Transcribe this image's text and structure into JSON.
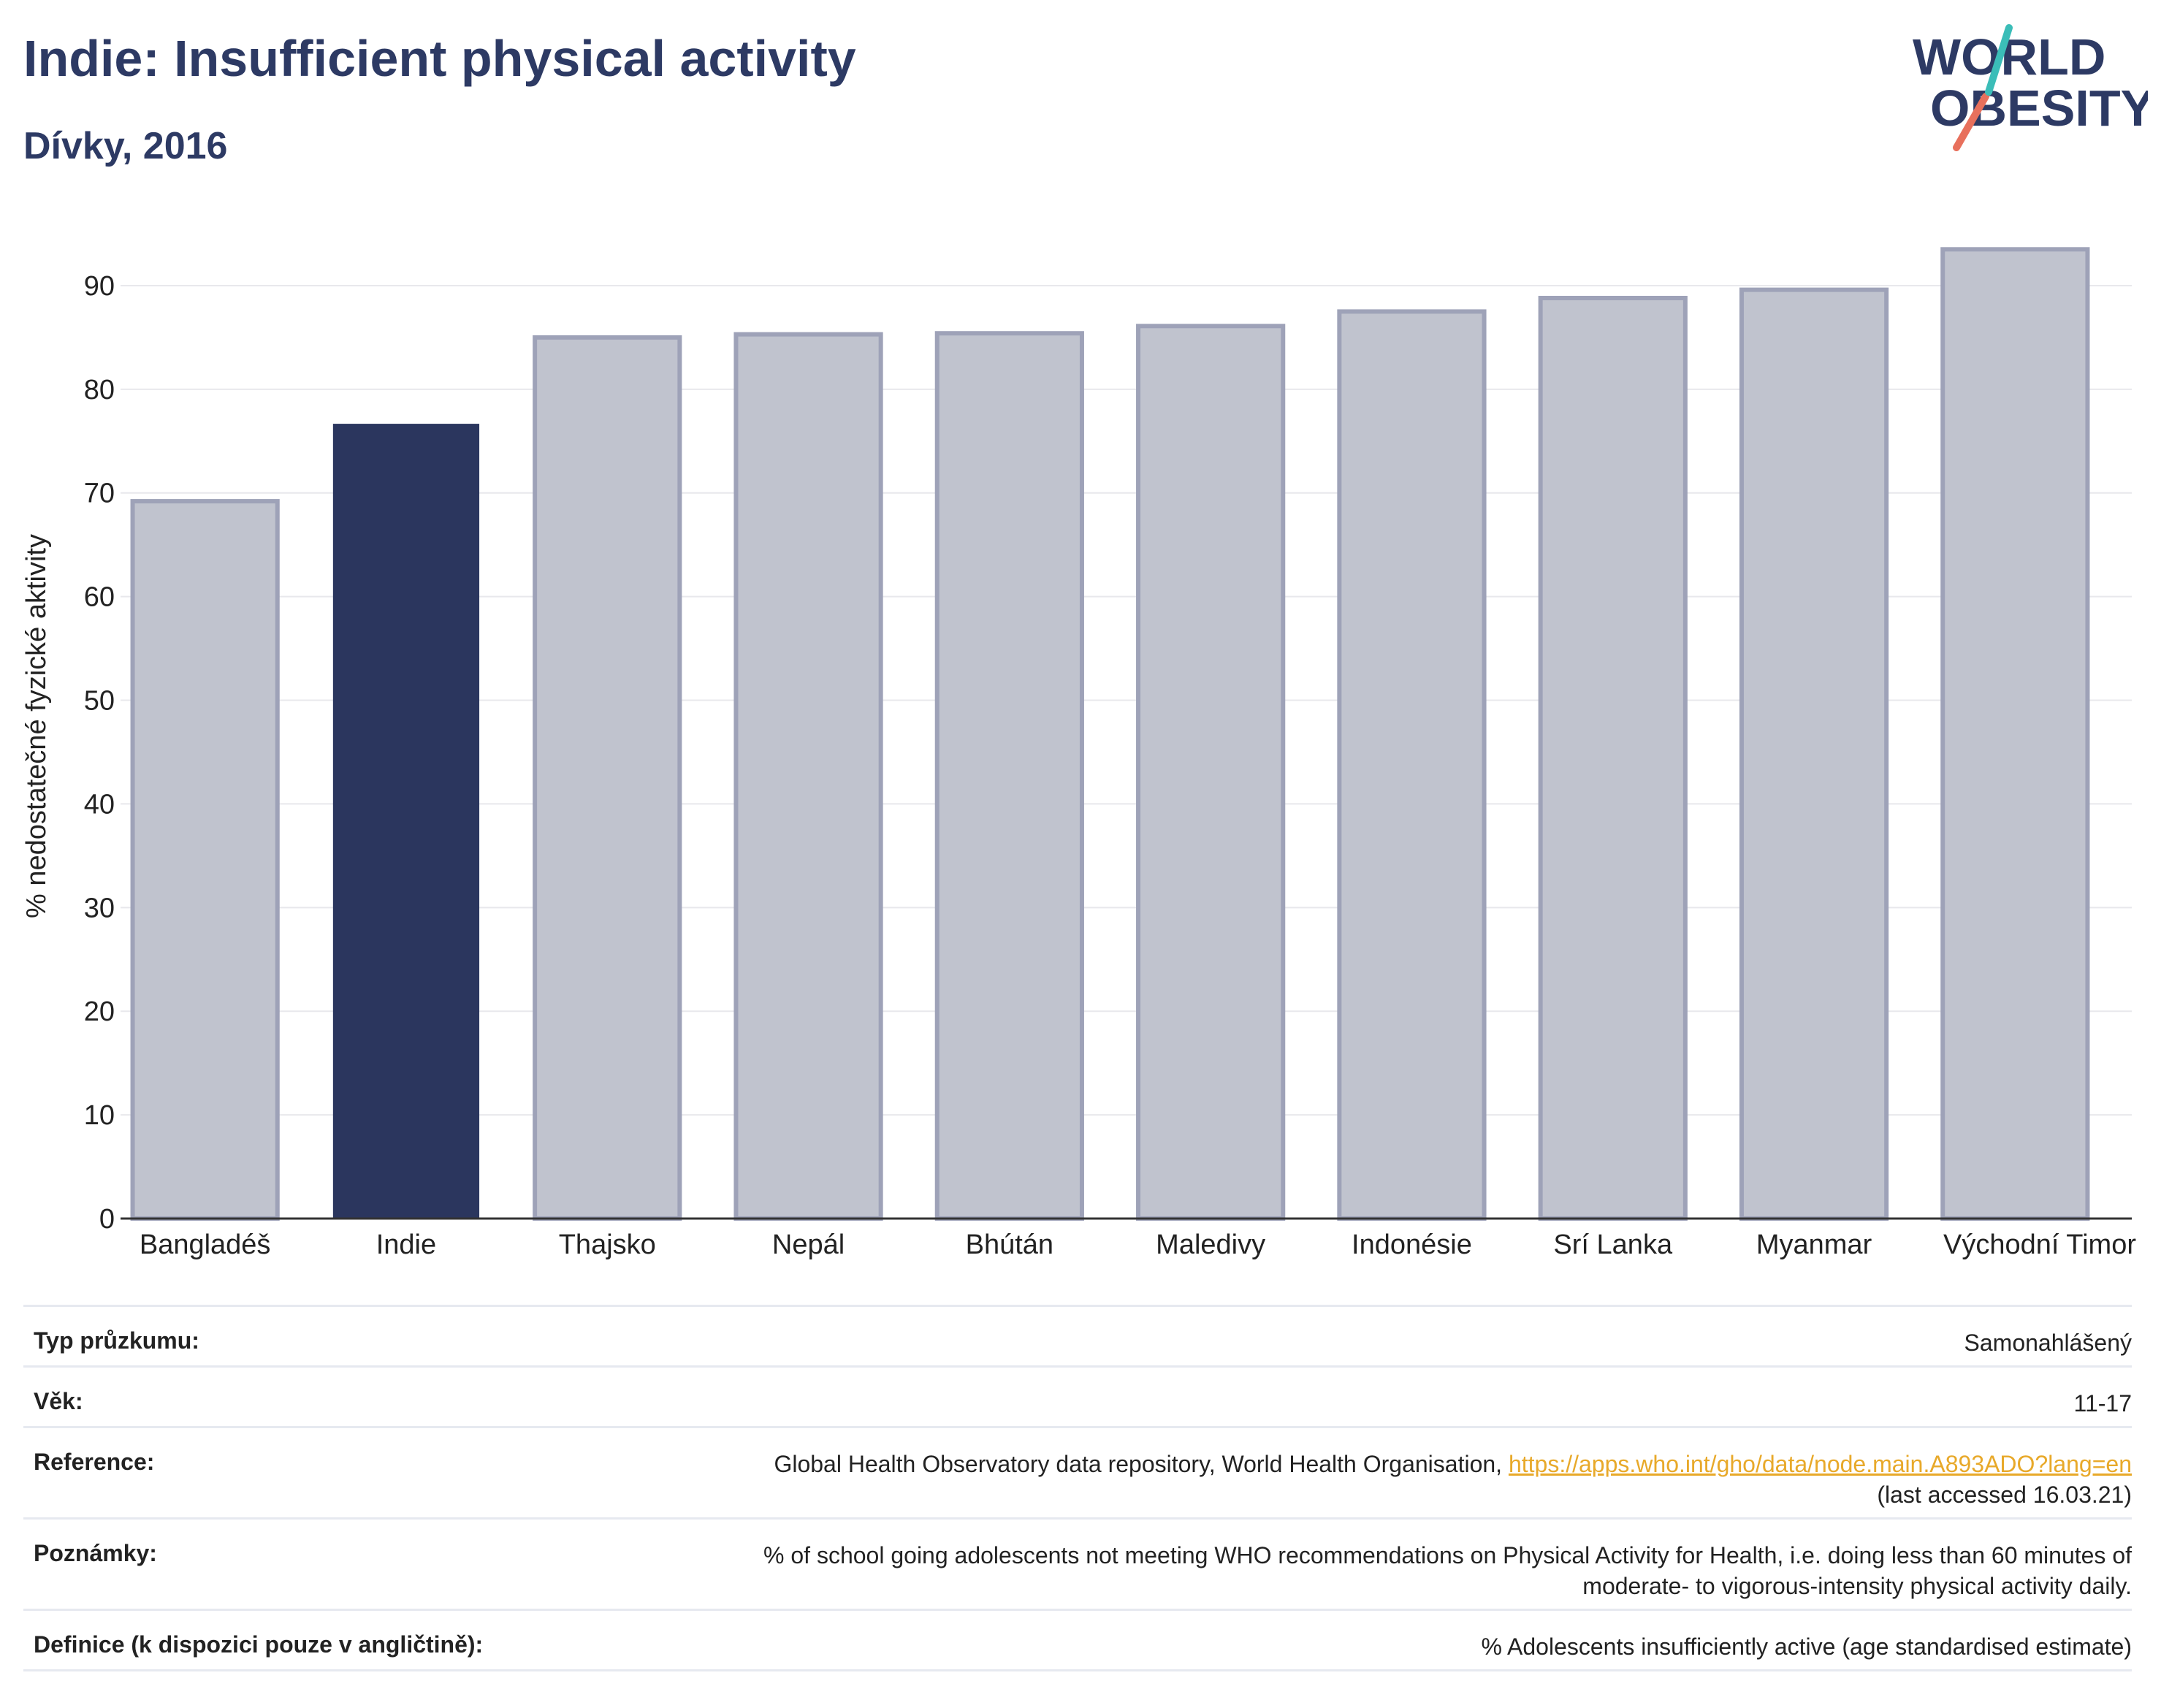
{
  "header": {
    "title": "Indie: Insufficient physical activity",
    "subtitle": "Dívky, 2016"
  },
  "logo": {
    "line1": "WORLD",
    "line2": "OBESITY",
    "colors": {
      "text": "#2d3a64",
      "slash_top": "#3bbdb8",
      "slash_bottom": "#e8705c"
    }
  },
  "chart_data": {
    "type": "bar",
    "title": "Indie: Insufficient physical activity",
    "subtitle": "Dívky, 2016",
    "xlabel": "",
    "ylabel": "% nedostatečné fyzické aktivity",
    "categories": [
      "Bangladéš",
      "Indie",
      "Thajsko",
      "Nepál",
      "Bhútán",
      "Maledivy",
      "Indonésie",
      "Srí Lanka",
      "Myanmar",
      "Východní Timor"
    ],
    "values": [
      69.2,
      76.6,
      85.0,
      85.3,
      85.4,
      86.1,
      87.5,
      88.8,
      89.6,
      93.5
    ],
    "highlight": "Indie",
    "ylim": [
      0,
      95
    ],
    "yticks": [
      0,
      10,
      20,
      30,
      40,
      50,
      60,
      70,
      80,
      90
    ],
    "grid": true,
    "colors": {
      "highlight": "#2b365e",
      "other_fill": "#c0c3ce",
      "other_stroke": "#9ea2b8",
      "grid": "#e8e8ec",
      "axis": "#333333"
    }
  },
  "table": {
    "rows": [
      {
        "label": "Typ průzkumu:",
        "value": "Samonahlášený"
      },
      {
        "label": "Věk:",
        "value": "11-17"
      },
      {
        "label": "Reference:",
        "value_prefix": "Global Health Observatory data repository, World Health Organisation, ",
        "link": "https://apps.who.int/gho/data/node.main.A893ADO?lang=en",
        "value_suffix": "(last accessed 16.03.21)"
      },
      {
        "label": "Poznámky:",
        "value_line1": "% of school going adolescents not meeting WHO recommendations on Physical Activity for Health, i.e. doing less than 60 minutes of",
        "value_line2": "moderate- to vigorous-intensity physical activity daily."
      },
      {
        "label": "Definice (k dispozici pouze v angličtině):",
        "value": "% Adolescents insufficiently active (age standardised estimate)"
      }
    ]
  }
}
